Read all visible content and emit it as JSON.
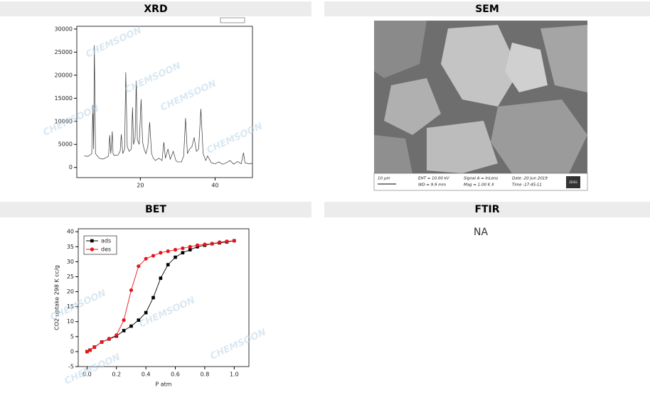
{
  "watermark": "CHEMSOON",
  "chart_data": [
    {
      "type": "line",
      "title": "XRD",
      "color": "#333333",
      "x": [
        5,
        6,
        7,
        7.3,
        7.5,
        7.7,
        8.0,
        9,
        10,
        11,
        11.5,
        11.8,
        12.1,
        12.5,
        12.7,
        13,
        14,
        14.6,
        14.9,
        15.3,
        15.8,
        16.1,
        16.5,
        17,
        17.6,
        17.9,
        18.2,
        18.6,
        18.9,
        19.2,
        19.7,
        20.2,
        20.6,
        21,
        21.5,
        22,
        22.5,
        23,
        23.5,
        24,
        25,
        25.8,
        26.3,
        26.7,
        27.4,
        28,
        28.8,
        29.5,
        30,
        31,
        31.6,
        32.1,
        32.6,
        33.2,
        33.8,
        34.4,
        35,
        35.6,
        36.2,
        36.8,
        37.5,
        38,
        39,
        40,
        41,
        42,
        43,
        44,
        45,
        46,
        47,
        47.6,
        48,
        49,
        50
      ],
      "values": [
        2500,
        2400,
        3000,
        13500,
        4000,
        26500,
        3000,
        2000,
        1800,
        2200,
        2500,
        7000,
        3000,
        7800,
        3000,
        2600,
        2700,
        3500,
        7200,
        3000,
        4000,
        20600,
        4500,
        3500,
        4000,
        13000,
        5000,
        6500,
        18800,
        6000,
        5000,
        14800,
        5500,
        4000,
        3000,
        4500,
        9800,
        3000,
        2000,
        1500,
        2000,
        1500,
        5500,
        2000,
        4000,
        1800,
        3500,
        1500,
        1200,
        1200,
        2500,
        10700,
        3000,
        4000,
        4500,
        6500,
        3500,
        4000,
        12700,
        3000,
        1500,
        2500,
        1000,
        800,
        1200,
        700,
        1000,
        1500,
        700,
        1300,
        800,
        3200,
        1000,
        800,
        900
      ],
      "xlim": [
        3,
        50
      ],
      "ylim": [
        -2200,
        30600
      ],
      "xticks": [
        20,
        40
      ],
      "yticks": [
        0,
        5000,
        10000,
        15000,
        20000,
        25000,
        30000
      ]
    },
    {
      "type": "scatter-line",
      "title": "BET",
      "xlabel": "P atm",
      "ylabel": "CO2 uptake  298 K  cc/g",
      "series": [
        {
          "name": "ads",
          "color": "#000000",
          "marker": "square",
          "x": [
            0,
            0.02,
            0.05,
            0.1,
            0.15,
            0.2,
            0.25,
            0.3,
            0.35,
            0.4,
            0.45,
            0.5,
            0.55,
            0.6,
            0.65,
            0.7,
            0.75,
            0.8,
            0.85,
            0.9,
            0.95,
            1.0
          ],
          "values": [
            0,
            0.5,
            1.5,
            3.2,
            4.2,
            5.2,
            7,
            8.5,
            10.5,
            13,
            18,
            24.5,
            29,
            31.5,
            33,
            34,
            35,
            35.5,
            36,
            36.3,
            36.6,
            37
          ]
        },
        {
          "name": "des",
          "color": "#e8141b",
          "marker": "circle",
          "x": [
            1.0,
            0.95,
            0.9,
            0.85,
            0.8,
            0.75,
            0.7,
            0.65,
            0.6,
            0.55,
            0.5,
            0.45,
            0.4,
            0.35,
            0.3,
            0.25,
            0.2,
            0.15,
            0.1,
            0.05,
            0.02,
            0
          ],
          "values": [
            37,
            36.8,
            36.5,
            36,
            35.8,
            35.5,
            35,
            34.5,
            34,
            33.5,
            33,
            32,
            31,
            28.5,
            20.5,
            10.5,
            5.5,
            4.3,
            3.2,
            1.5,
            0.5,
            0
          ]
        }
      ],
      "xlim": [
        -0.06,
        1.1
      ],
      "ylim": [
        -5,
        41
      ],
      "xticks": [
        {
          "value": 0,
          "label": "0.0"
        },
        {
          "value": 0.2,
          "label": "0.2"
        },
        {
          "value": 0.4,
          "label": "0.4"
        },
        {
          "value": 0.6,
          "label": "0.6"
        },
        {
          "value": 0.8,
          "label": "0.8"
        },
        {
          "value": 1,
          "label": "1.0"
        }
      ],
      "yticks": [
        -5,
        0,
        5,
        10,
        15,
        20,
        25,
        30,
        35,
        40
      ],
      "legend": "upper left"
    }
  ],
  "sem": {
    "title": "SEM",
    "scale": "10 µm",
    "eht": "EHT = 10.00 kV",
    "wd": "WD =  9.9 mm",
    "signal": "Signal A = InLens",
    "mag": "Mag =   1.00 K X",
    "date": "Date :20 Jun 2019",
    "time": "Time :17:45:11",
    "brand": "ZEISS"
  },
  "ftir": {
    "title": "FTIR",
    "text": "NA"
  }
}
